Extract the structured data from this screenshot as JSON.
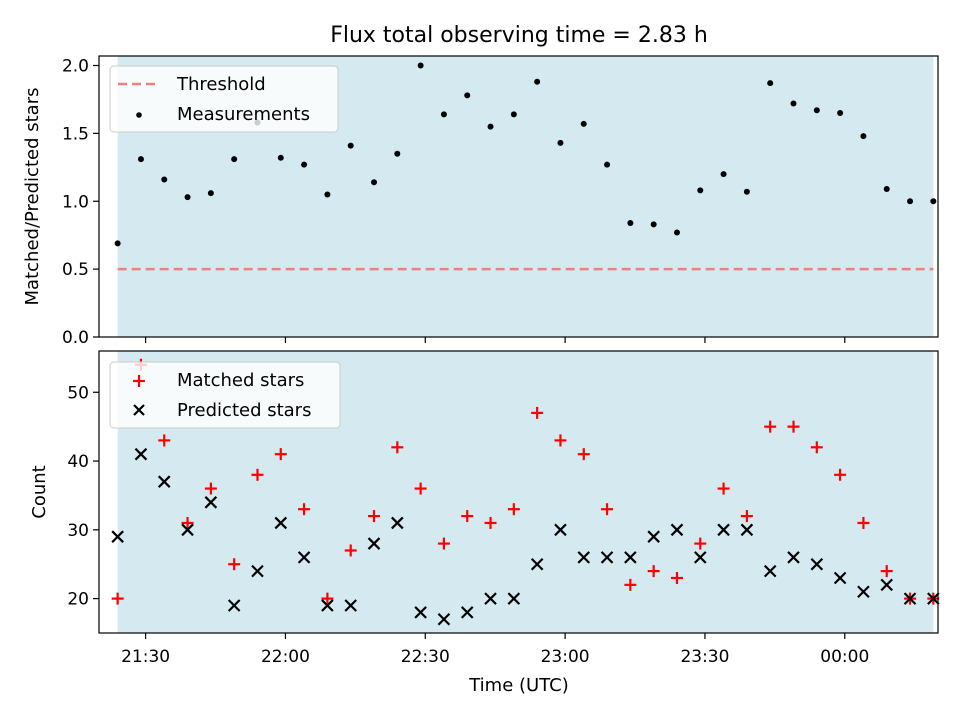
{
  "title": "Flux total observing time = 2.83 h",
  "colors": {
    "shade": "#d4eaf0",
    "threshold": "#f08080",
    "matched": "#ff0000",
    "predicted": "#000000",
    "measurement": "#000000"
  },
  "chart_data": [
    {
      "type": "scatter",
      "panel": "top",
      "ylabel": "Matched/Predicted stars",
      "ylim": [
        0.0,
        2.07
      ],
      "yticks": [
        "0.0",
        "0.5",
        "1.0",
        "1.5",
        "2.0"
      ],
      "x_unit": "minutes after 21:00 UTC",
      "x": [
        24,
        29,
        34,
        39,
        44,
        49,
        54,
        59,
        64,
        69,
        74,
        79,
        84,
        89,
        94,
        99,
        104,
        109,
        114,
        119,
        124,
        129,
        134,
        139,
        144,
        149,
        154,
        159,
        164,
        169,
        174,
        179,
        184,
        189,
        194,
        199
      ],
      "threshold": 0.5,
      "legend": [
        "Threshold",
        "Measurements"
      ],
      "series": [
        {
          "name": "Measurements",
          "values": [
            0.69,
            1.31,
            1.16,
            1.03,
            1.06,
            1.31,
            1.58,
            1.32,
            1.27,
            1.05,
            1.41,
            1.14,
            1.35,
            2.0,
            1.64,
            1.78,
            1.55,
            1.64,
            1.88,
            1.43,
            1.57,
            1.27,
            0.84,
            0.83,
            0.77,
            1.08,
            1.2,
            1.07,
            1.87,
            1.72,
            1.67,
            1.65,
            1.48,
            1.09,
            1.0,
            1.0
          ]
        }
      ]
    },
    {
      "type": "scatter",
      "panel": "bottom",
      "ylabel": "Count",
      "xlabel": "Time (UTC)",
      "ylim": [
        15,
        56
      ],
      "yticks": [
        "20",
        "30",
        "40",
        "50"
      ],
      "xticks": [
        "21:30",
        "22:00",
        "22:30",
        "23:00",
        "23:30",
        "00:00"
      ],
      "xlim_minutes": [
        20,
        200
      ],
      "legend": [
        "Matched stars",
        "Predicted stars"
      ],
      "x_unit": "minutes after 21:00 UTC",
      "x": [
        24,
        29,
        34,
        39,
        44,
        49,
        54,
        59,
        64,
        69,
        74,
        79,
        84,
        89,
        94,
        99,
        104,
        109,
        114,
        119,
        124,
        129,
        134,
        139,
        144,
        149,
        154,
        159,
        164,
        169,
        174,
        179,
        184,
        189,
        194,
        199
      ],
      "series": [
        {
          "name": "Matched stars",
          "values": [
            20,
            54,
            43,
            31,
            36,
            25,
            38,
            41,
            33,
            20,
            27,
            32,
            42,
            36,
            28,
            32,
            31,
            33,
            47,
            43,
            41,
            33,
            22,
            24,
            23,
            28,
            36,
            32,
            45,
            45,
            42,
            38,
            31,
            24,
            20,
            20
          ]
        },
        {
          "name": "Predicted stars",
          "values": [
            29,
            41,
            37,
            30,
            34,
            19,
            24,
            31,
            26,
            19,
            19,
            28,
            31,
            18,
            17,
            18,
            20,
            20,
            25,
            30,
            26,
            26,
            26,
            29,
            30,
            26,
            30,
            30,
            24,
            26,
            25,
            23,
            21,
            22,
            20,
            20
          ]
        }
      ]
    }
  ]
}
